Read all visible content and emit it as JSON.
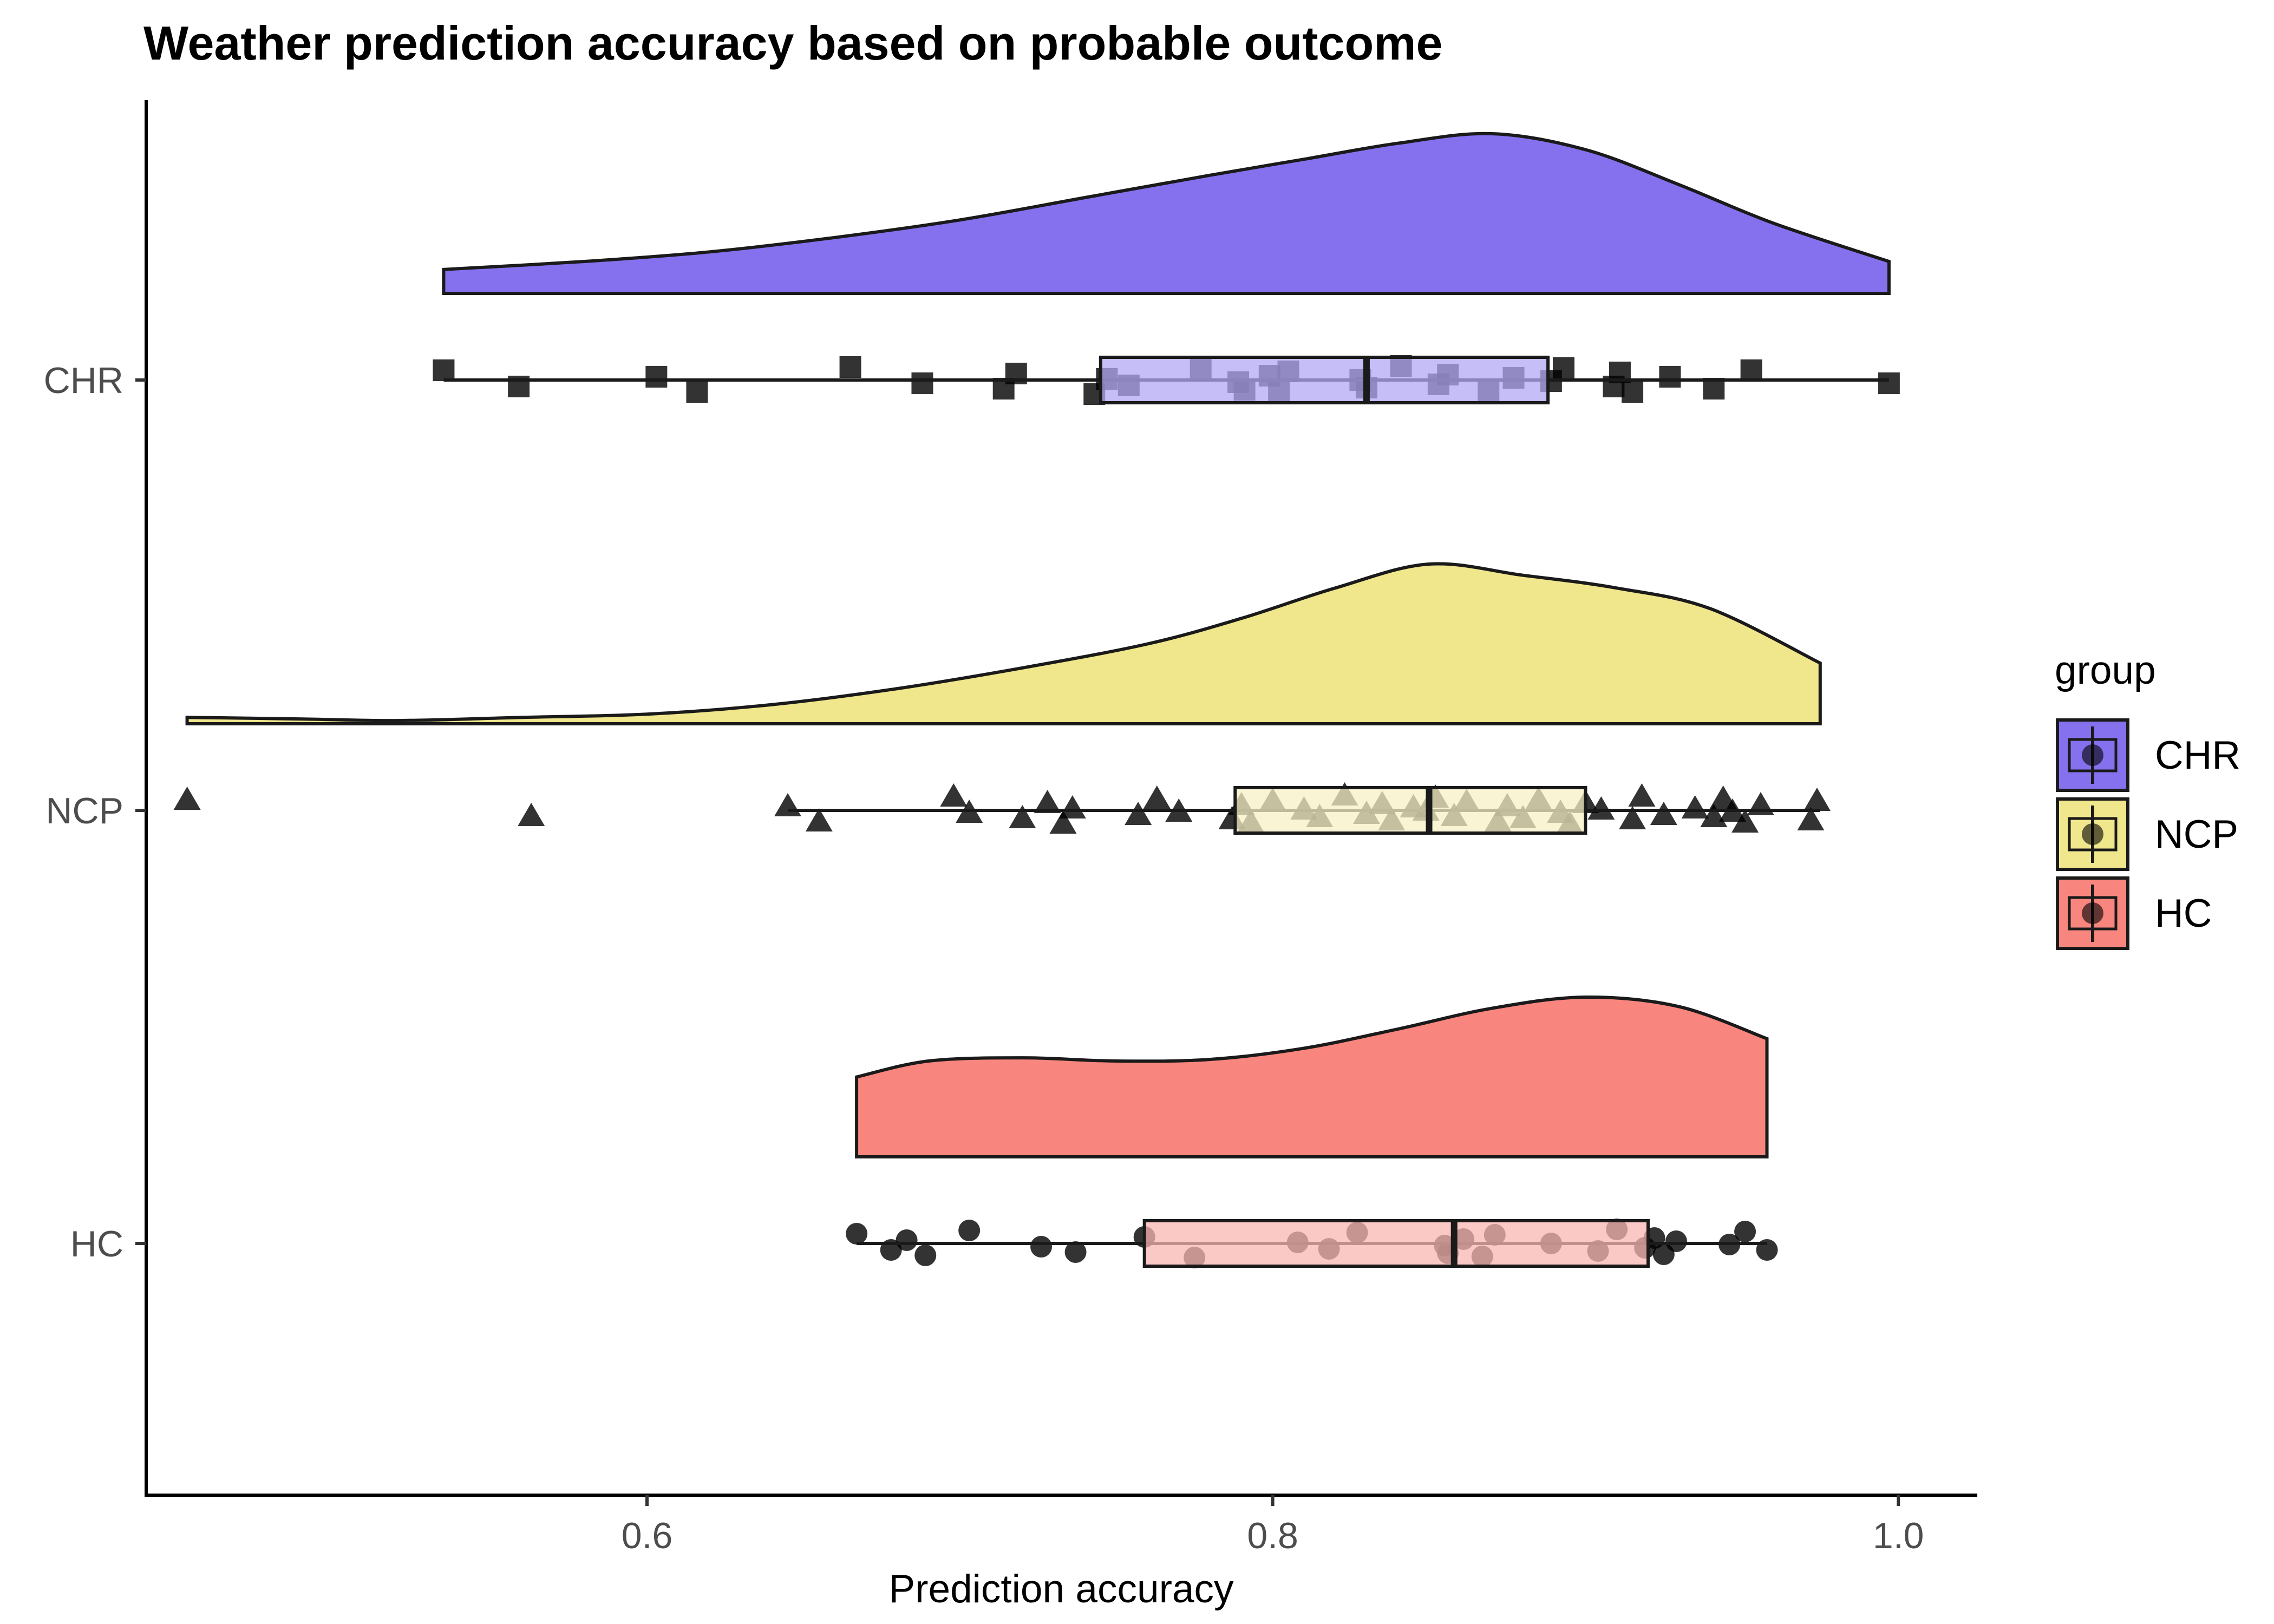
{
  "chart_data": {
    "type": "raincloud",
    "title": "Weather prediction accuracy based on probable outcome",
    "xlabel": "Prediction accuracy",
    "ylabel": "",
    "xlim": [
      0.453,
      1.024
    ],
    "x_ticks": [
      0.6,
      0.8,
      1.0
    ],
    "x_tick_labels": [
      "0.6",
      "0.8",
      "1.0"
    ],
    "categories": [
      "CHR",
      "NCP",
      "HC"
    ],
    "grid": false,
    "legend": {
      "title": "group",
      "placement": "right",
      "entries": [
        "CHR",
        "NCP",
        "HC"
      ]
    },
    "series": [
      {
        "name": "CHR",
        "color": "#8571ED",
        "box_fill": "#B3A8F4",
        "marker": "square",
        "box": {
          "min": 0.535,
          "q1": 0.745,
          "median": 0.83,
          "q3": 0.888,
          "max": 0.997
        },
        "density": [
          [
            0.535,
            0.15
          ],
          [
            0.58,
            0.2
          ],
          [
            0.62,
            0.26
          ],
          [
            0.66,
            0.35
          ],
          [
            0.7,
            0.46
          ],
          [
            0.74,
            0.6
          ],
          [
            0.78,
            0.74
          ],
          [
            0.81,
            0.84
          ],
          [
            0.84,
            0.94
          ],
          [
            0.87,
            1.0
          ],
          [
            0.9,
            0.9
          ],
          [
            0.93,
            0.68
          ],
          [
            0.96,
            0.44
          ],
          [
            0.997,
            0.2
          ]
        ],
        "points": [
          0.535,
          0.559,
          0.603,
          0.616,
          0.665,
          0.688,
          0.714,
          0.718,
          0.743,
          0.747,
          0.754,
          0.777,
          0.789,
          0.791,
          0.799,
          0.802,
          0.805,
          0.828,
          0.83,
          0.841,
          0.853,
          0.856,
          0.869,
          0.877,
          0.889,
          0.893,
          0.909,
          0.911,
          0.915,
          0.927,
          0.941,
          0.953,
          0.997
        ]
      },
      {
        "name": "NCP",
        "color": "#F0E68C",
        "box_fill": "#F7F0C4",
        "marker": "triangle",
        "box": {
          "min": 0.645,
          "q1": 0.788,
          "median": 0.85,
          "q3": 0.9,
          "max": 0.975
        },
        "density": [
          [
            0.453,
            0.04
          ],
          [
            0.49,
            0.03
          ],
          [
            0.52,
            0.02
          ],
          [
            0.56,
            0.04
          ],
          [
            0.6,
            0.06
          ],
          [
            0.64,
            0.12
          ],
          [
            0.68,
            0.22
          ],
          [
            0.72,
            0.35
          ],
          [
            0.76,
            0.5
          ],
          [
            0.79,
            0.66
          ],
          [
            0.82,
            0.85
          ],
          [
            0.85,
            1.0
          ],
          [
            0.88,
            0.93
          ],
          [
            0.91,
            0.85
          ],
          [
            0.94,
            0.72
          ],
          [
            0.975,
            0.38
          ]
        ],
        "points": [
          0.453,
          0.563,
          0.645,
          0.655,
          0.698,
          0.703,
          0.72,
          0.728,
          0.733,
          0.736,
          0.757,
          0.763,
          0.77,
          0.787,
          0.79,
          0.793,
          0.8,
          0.81,
          0.815,
          0.823,
          0.83,
          0.835,
          0.838,
          0.845,
          0.849,
          0.852,
          0.858,
          0.862,
          0.872,
          0.875,
          0.88,
          0.885,
          0.892,
          0.895,
          0.9,
          0.905,
          0.915,
          0.918,
          0.925,
          0.935,
          0.941,
          0.944,
          0.947,
          0.951,
          0.956,
          0.972,
          0.974
        ]
      },
      {
        "name": "HC",
        "color": "#F8867E",
        "box_fill": "#FAB7B1",
        "marker": "circle",
        "box": {
          "min": 0.667,
          "q1": 0.759,
          "median": 0.858,
          "q3": 0.92,
          "max": 0.958
        },
        "density": [
          [
            0.667,
            0.5
          ],
          [
            0.69,
            0.6
          ],
          [
            0.72,
            0.62
          ],
          [
            0.75,
            0.6
          ],
          [
            0.78,
            0.61
          ],
          [
            0.81,
            0.68
          ],
          [
            0.84,
            0.8
          ],
          [
            0.87,
            0.93
          ],
          [
            0.9,
            1.0
          ],
          [
            0.93,
            0.94
          ],
          [
            0.958,
            0.74
          ]
        ],
        "points": [
          0.667,
          0.678,
          0.683,
          0.689,
          0.703,
          0.726,
          0.737,
          0.759,
          0.775,
          0.808,
          0.818,
          0.827,
          0.855,
          0.856,
          0.861,
          0.867,
          0.871,
          0.889,
          0.904,
          0.91,
          0.919,
          0.922,
          0.925,
          0.929,
          0.946,
          0.951,
          0.958
        ]
      }
    ]
  }
}
